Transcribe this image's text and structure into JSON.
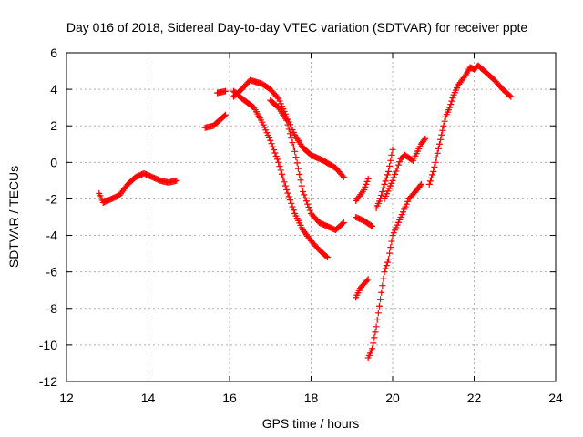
{
  "chart_data": {
    "type": "scatter",
    "title": "Day 016 of 2018, Sidereal Day-to-day VTEC variation (SDTVAR) for receiver ppte",
    "xlabel": "GPS time / hours",
    "ylabel": "SDTVAR / TECUs",
    "xlim": [
      12,
      24
    ],
    "ylim": [
      -12,
      6
    ],
    "xticks": [
      "12",
      "14",
      "16",
      "18",
      "20",
      "22",
      "24"
    ],
    "yticks": [
      "6",
      "4",
      "2",
      "0",
      "-2",
      "-4",
      "-6",
      "-8",
      "-10",
      "-12"
    ],
    "grid": true,
    "marker": "+",
    "color": "#ff0000",
    "series": [
      {
        "points": [
          [
            12.8,
            -1.7
          ],
          [
            12.9,
            -2.2
          ],
          [
            13.1,
            -2.0
          ],
          [
            13.3,
            -1.8
          ],
          [
            13.5,
            -1.2
          ],
          [
            13.7,
            -0.8
          ],
          [
            13.9,
            -0.6
          ],
          [
            14.1,
            -0.8
          ],
          [
            14.3,
            -1.0
          ],
          [
            14.5,
            -1.1
          ],
          [
            14.7,
            -1.0
          ]
        ]
      },
      {
        "points": [
          [
            15.4,
            1.9
          ],
          [
            15.6,
            2.0
          ],
          [
            15.8,
            2.4
          ],
          [
            15.9,
            2.6
          ]
        ]
      },
      {
        "points": [
          [
            15.7,
            3.8
          ],
          [
            15.9,
            3.9
          ]
        ]
      },
      {
        "points": [
          [
            16.1,
            3.9
          ],
          [
            16.3,
            3.5
          ],
          [
            16.6,
            3.0
          ],
          [
            16.8,
            2.2
          ],
          [
            17.0,
            1.2
          ],
          [
            17.2,
            0.0
          ],
          [
            17.4,
            -1.5
          ],
          [
            17.6,
            -2.8
          ],
          [
            17.8,
            -3.7
          ],
          [
            18.0,
            -4.3
          ],
          [
            18.2,
            -4.8
          ],
          [
            18.4,
            -5.2
          ]
        ]
      },
      {
        "points": [
          [
            16.1,
            3.6
          ],
          [
            16.3,
            4.0
          ],
          [
            16.5,
            4.5
          ],
          [
            16.8,
            4.3
          ],
          [
            17.0,
            4.0
          ],
          [
            17.2,
            3.5
          ],
          [
            17.4,
            2.5
          ],
          [
            17.6,
            1.5
          ],
          [
            17.8,
            0.8
          ],
          [
            18.0,
            0.4
          ],
          [
            18.3,
            0.1
          ],
          [
            18.6,
            -0.3
          ],
          [
            18.8,
            -0.8
          ]
        ]
      },
      {
        "points": [
          [
            17.0,
            3.4
          ],
          [
            17.2,
            3.0
          ],
          [
            17.4,
            2.3
          ],
          [
            17.6,
            0.6
          ],
          [
            17.8,
            -1.6
          ],
          [
            18.0,
            -2.8
          ],
          [
            18.2,
            -3.3
          ],
          [
            18.4,
            -3.5
          ],
          [
            18.6,
            -3.7
          ],
          [
            18.8,
            -3.3
          ]
        ]
      },
      {
        "points": [
          [
            19.1,
            -2.1
          ],
          [
            19.3,
            -1.5
          ],
          [
            19.4,
            -0.9
          ]
        ]
      },
      {
        "points": [
          [
            19.1,
            -3.0
          ],
          [
            19.3,
            -3.2
          ],
          [
            19.5,
            -3.5
          ]
        ]
      },
      {
        "points": [
          [
            19.1,
            -7.4
          ],
          [
            19.2,
            -6.9
          ],
          [
            19.4,
            -6.4
          ]
        ]
      },
      {
        "points": [
          [
            19.4,
            -10.7
          ],
          [
            19.5,
            -10.2
          ],
          [
            19.6,
            -9.0
          ],
          [
            19.7,
            -7.5
          ],
          [
            19.8,
            -6.0
          ],
          [
            19.9,
            -5.3
          ],
          [
            20.0,
            -4.0
          ],
          [
            20.2,
            -3.0
          ],
          [
            20.4,
            -2.0
          ],
          [
            20.6,
            -1.5
          ],
          [
            20.7,
            -1.2
          ]
        ]
      },
      {
        "points": [
          [
            19.6,
            -2.5
          ],
          [
            19.7,
            -2.0
          ],
          [
            19.8,
            -1.2
          ],
          [
            19.9,
            -0.5
          ],
          [
            20.0,
            0.7
          ]
        ]
      },
      {
        "points": [
          [
            19.8,
            -2.0
          ],
          [
            20.0,
            -1.0
          ],
          [
            20.2,
            0.2
          ],
          [
            20.3,
            0.4
          ],
          [
            20.5,
            0.1
          ],
          [
            20.7,
            1.0
          ],
          [
            20.8,
            1.3
          ]
        ]
      },
      {
        "points": [
          [
            20.9,
            -1.2
          ],
          [
            21.0,
            -0.5
          ],
          [
            21.1,
            0.5
          ],
          [
            21.2,
            1.5
          ],
          [
            21.3,
            2.5
          ],
          [
            21.4,
            3.0
          ],
          [
            21.5,
            3.7
          ],
          [
            21.6,
            4.2
          ],
          [
            21.8,
            4.8
          ],
          [
            21.9,
            5.2
          ],
          [
            22.0,
            5.1
          ],
          [
            22.1,
            5.3
          ],
          [
            22.3,
            4.9
          ],
          [
            22.5,
            4.5
          ],
          [
            22.7,
            4.0
          ],
          [
            22.9,
            3.6
          ]
        ]
      }
    ]
  }
}
